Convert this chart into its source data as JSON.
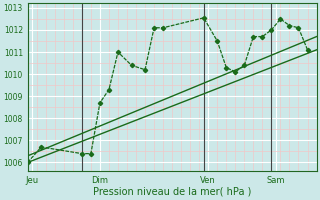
{
  "xlabel": "Pression niveau de la mer( hPa )",
  "bg_color": "#cce8e8",
  "plot_bg_color": "#cce8e8",
  "line_color": "#1a6b1a",
  "grid_color_major": "#ffffff",
  "grid_color_minor": "#f0c8c8",
  "ylim": [
    1005.6,
    1013.2
  ],
  "yticks": [
    1006,
    1007,
    1008,
    1009,
    1010,
    1011,
    1012,
    1013
  ],
  "xlim": [
    0,
    32
  ],
  "day_ticks": [
    0.5,
    8,
    20,
    27.5
  ],
  "day_labels": [
    "Jeu",
    "Dim",
    "Ven",
    "Sam"
  ],
  "vline_positions": [
    6,
    19.5,
    27
  ],
  "series1_x": [
    0,
    1.5,
    6,
    7,
    8,
    9,
    10,
    11.5,
    13,
    14,
    15,
    19.5,
    21,
    22,
    23,
    24,
    25,
    26,
    27,
    28,
    29,
    30,
    31
  ],
  "series1_y": [
    1006.0,
    1006.7,
    1006.4,
    1006.4,
    1008.7,
    1009.3,
    1011.0,
    1010.4,
    1010.2,
    1012.1,
    1012.1,
    1012.55,
    1011.5,
    1010.3,
    1010.1,
    1010.4,
    1011.7,
    1011.7,
    1012.0,
    1012.5,
    1012.2,
    1012.1,
    1011.1
  ],
  "series2_x": [
    0,
    32
  ],
  "series2_y": [
    1006.0,
    1011.1
  ],
  "series3_x": [
    0,
    32
  ],
  "series3_y": [
    1006.3,
    1011.7
  ]
}
